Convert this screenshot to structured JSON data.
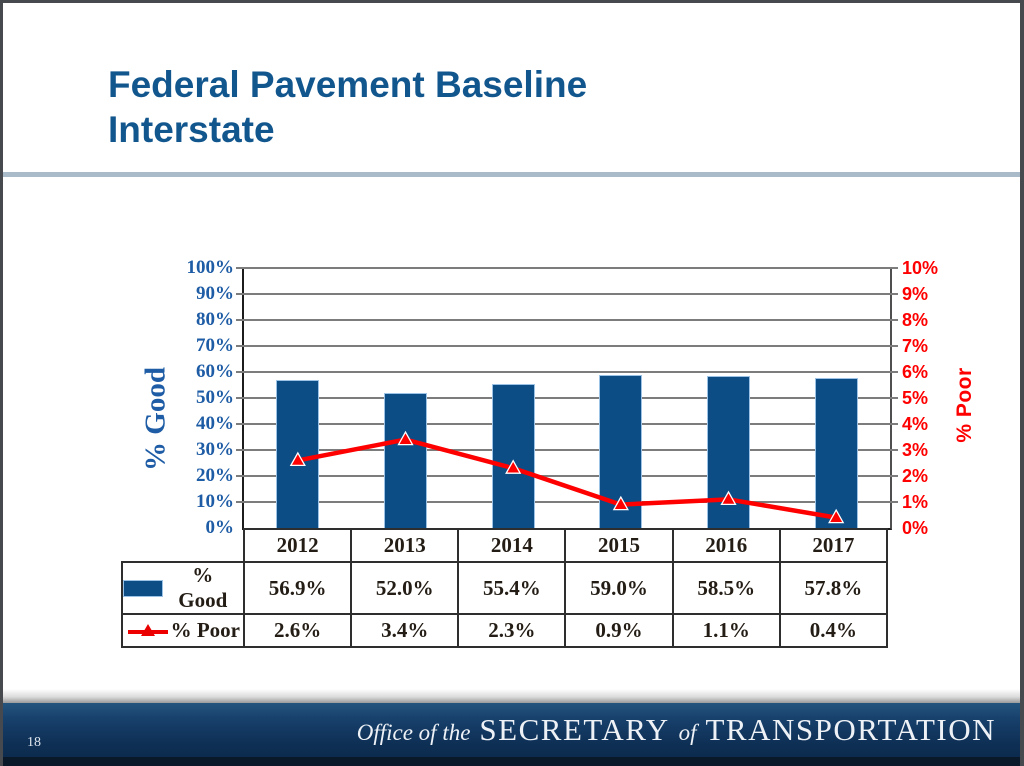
{
  "slide": {
    "title_line1": "Federal Pavement Baseline",
    "title_line2": "Interstate",
    "page_number": "18",
    "footer": {
      "prefix_italic": "Office of the",
      "word1": "SECRETARY",
      "mid_italic": "of",
      "word2": "TRANSPORTATION"
    }
  },
  "colors": {
    "title_blue": "#12568e",
    "axis_blue": "#1e5ca5",
    "bar_navy": "#0c4d86",
    "bar_border": "#9cc2e5",
    "line_red": "#fe0000",
    "grid_gray": "#7c7c7c",
    "divider_gray_blue": "#a9bac8",
    "footer_navy": "#123a61",
    "table_text": "#241d15"
  },
  "chart_data": {
    "type": "bar",
    "subtype": "combo bar + line, dual axis",
    "categories": [
      "2012",
      "2013",
      "2014",
      "2015",
      "2016",
      "2017"
    ],
    "series": [
      {
        "name": "% Good",
        "type": "bar",
        "axis": "left",
        "values": [
          56.9,
          52.0,
          55.4,
          59.0,
          58.5,
          57.8
        ],
        "labels": [
          "56.9%",
          "52.0%",
          "55.4%",
          "59.0%",
          "58.5%",
          "57.8%"
        ],
        "color": "#0c4d86"
      },
      {
        "name": "% Poor",
        "type": "line",
        "axis": "right",
        "values": [
          2.6,
          3.4,
          2.3,
          0.9,
          1.1,
          0.4
        ],
        "labels": [
          "2.6%",
          "3.4%",
          "2.3%",
          "0.9%",
          "1.1%",
          "0.4%"
        ],
        "color": "#fe0000",
        "marker": "triangle"
      }
    ],
    "left_axis": {
      "label": "% Good",
      "min": 0,
      "max": 100,
      "step": 10,
      "ticks_top_to_bottom": [
        "100%",
        "90%",
        "80%",
        "70%",
        "60%",
        "50%",
        "40%",
        "30%",
        "20%",
        "10%",
        "0%"
      ]
    },
    "right_axis": {
      "label": "% Poor",
      "min": 0,
      "max": 10,
      "step": 1,
      "ticks_top_to_bottom": [
        "10%",
        "9%",
        "8%",
        "7%",
        "6%",
        "5%",
        "4%",
        "3%",
        "2%",
        "1%",
        "0%"
      ]
    },
    "grid": true,
    "legend_position": "table-left"
  }
}
